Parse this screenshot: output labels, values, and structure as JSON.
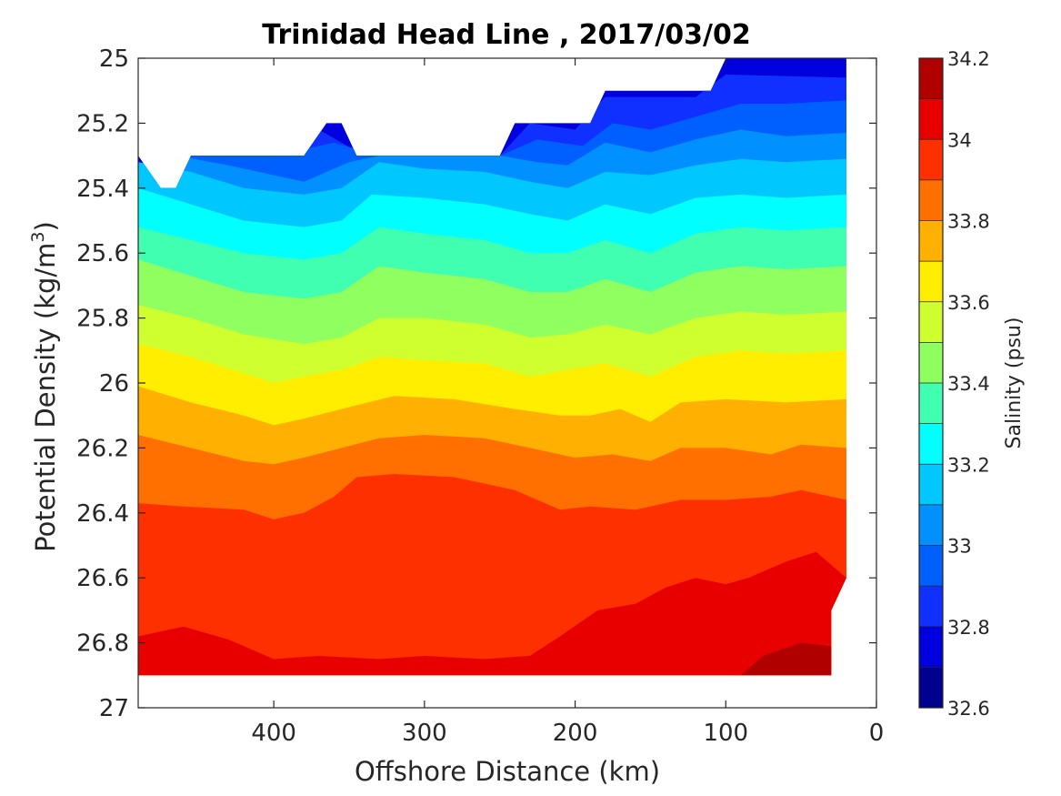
{
  "chart_data": {
    "type": "contour",
    "title": "Trinidad Head Line , 2017/03/02",
    "xlabel": "Offshore Distance (km)",
    "ylabel_main": "Potential Density (kg/m",
    "ylabel_sup": "3",
    "ylabel_close": ")",
    "colorbar_label": "Salinity (psu)",
    "xlim": [
      490,
      0
    ],
    "x_reversed": true,
    "ylim": [
      25,
      27
    ],
    "y_reversed": true,
    "x_ticks": [
      400,
      300,
      200,
      100,
      0
    ],
    "x_tick_labels": [
      "400",
      "300",
      "200",
      "100",
      "0"
    ],
    "y_ticks": [
      25,
      25.2,
      25.4,
      25.6,
      25.8,
      26,
      26.2,
      26.4,
      26.6,
      26.8,
      27
    ],
    "y_tick_labels": [
      "25",
      "25.2",
      "25.4",
      "25.6",
      "25.8",
      "26",
      "26.2",
      "26.4",
      "26.6",
      "26.8",
      "27"
    ],
    "colorbar": {
      "levels": [
        32.6,
        32.7,
        32.8,
        32.9,
        33.0,
        33.1,
        33.2,
        33.3,
        33.4,
        33.5,
        33.6,
        33.7,
        33.8,
        33.9,
        34.0,
        34.1,
        34.2
      ],
      "tick_values": [
        32.6,
        32.8,
        33.0,
        33.2,
        33.4,
        33.6,
        33.8,
        34.0,
        34.2
      ],
      "tick_labels": [
        "32.6",
        "32.8",
        "33",
        "33.2",
        "33.4",
        "33.6",
        "33.8",
        "34",
        "34.2"
      ],
      "colors": [
        "#00008f",
        "#0000df",
        "#0f30ff",
        "#0060ff",
        "#0090ff",
        "#00c8ff",
        "#00ffff",
        "#40ffb0",
        "#90ff60",
        "#d0ff30",
        "#ffee00",
        "#ffb000",
        "#ff7000",
        "#ff3000",
        "#e80000",
        "#b00000"
      ]
    },
    "data_extent": {
      "x": [
        490,
        20
      ],
      "y_min": [
        [
          490,
          25.3
        ],
        [
          475,
          25.4
        ],
        [
          465,
          25.4
        ],
        [
          455,
          25.3
        ],
        [
          380,
          25.3
        ],
        [
          365,
          25.2
        ],
        [
          355,
          25.2
        ],
        [
          345,
          25.3
        ],
        [
          250,
          25.3
        ],
        [
          240,
          25.2
        ],
        [
          190,
          25.2
        ],
        [
          180,
          25.1
        ],
        [
          110,
          25.1
        ],
        [
          100,
          25.0
        ],
        [
          20,
          25.0
        ]
      ],
      "y_max": 26.9
    },
    "isolines": [
      {
        "level": 32.8,
        "points": [
          [
            390,
            25.3
          ],
          [
            370,
            25.22
          ],
          [
            340,
            25.3
          ],
          [
            300,
            25.3
          ],
          [
            250,
            25.3
          ],
          [
            230,
            25.2
          ],
          [
            200,
            25.22
          ],
          [
            180,
            25.12
          ],
          [
            120,
            25.12
          ],
          [
            100,
            25.05
          ],
          [
            20,
            25.06
          ]
        ]
      },
      {
        "level": 32.9,
        "points": [
          [
            460,
            25.3
          ],
          [
            400,
            25.3
          ],
          [
            360,
            25.26
          ],
          [
            330,
            25.3
          ],
          [
            250,
            25.3
          ],
          [
            225,
            25.25
          ],
          [
            195,
            25.27
          ],
          [
            175,
            25.2
          ],
          [
            150,
            25.22
          ],
          [
            120,
            25.18
          ],
          [
            90,
            25.14
          ],
          [
            60,
            25.14
          ],
          [
            20,
            25.13
          ]
        ]
      },
      {
        "level": 33.0,
        "points": [
          [
            465,
            25.3
          ],
          [
            430,
            25.33
          ],
          [
            380,
            25.38
          ],
          [
            350,
            25.32
          ],
          [
            330,
            25.3
          ],
          [
            250,
            25.3
          ],
          [
            225,
            25.32
          ],
          [
            205,
            25.33
          ],
          [
            180,
            25.26
          ],
          [
            150,
            25.29
          ],
          [
            120,
            25.25
          ],
          [
            90,
            25.22
          ],
          [
            60,
            25.24
          ],
          [
            20,
            25.23
          ]
        ]
      },
      {
        "level": 33.1,
        "points": [
          [
            490,
            25.32
          ],
          [
            455,
            25.35
          ],
          [
            420,
            25.4
          ],
          [
            380,
            25.42
          ],
          [
            355,
            25.4
          ],
          [
            330,
            25.32
          ],
          [
            300,
            25.34
          ],
          [
            260,
            25.35
          ],
          [
            230,
            25.38
          ],
          [
            205,
            25.4
          ],
          [
            180,
            25.35
          ],
          [
            150,
            25.36
          ],
          [
            120,
            25.33
          ],
          [
            90,
            25.31
          ],
          [
            60,
            25.32
          ],
          [
            20,
            25.31
          ]
        ]
      },
      {
        "level": 33.2,
        "points": [
          [
            490,
            25.4
          ],
          [
            455,
            25.45
          ],
          [
            420,
            25.5
          ],
          [
            380,
            25.52
          ],
          [
            355,
            25.5
          ],
          [
            335,
            25.42
          ],
          [
            300,
            25.43
          ],
          [
            260,
            25.45
          ],
          [
            230,
            25.48
          ],
          [
            205,
            25.5
          ],
          [
            180,
            25.45
          ],
          [
            150,
            25.48
          ],
          [
            120,
            25.43
          ],
          [
            90,
            25.42
          ],
          [
            60,
            25.43
          ],
          [
            20,
            25.42
          ]
        ]
      },
      {
        "level": 33.3,
        "points": [
          [
            490,
            25.52
          ],
          [
            455,
            25.56
          ],
          [
            420,
            25.6
          ],
          [
            380,
            25.62
          ],
          [
            355,
            25.6
          ],
          [
            330,
            25.52
          ],
          [
            300,
            25.54
          ],
          [
            260,
            25.56
          ],
          [
            230,
            25.6
          ],
          [
            205,
            25.6
          ],
          [
            180,
            25.56
          ],
          [
            150,
            25.6
          ],
          [
            120,
            25.54
          ],
          [
            90,
            25.52
          ],
          [
            60,
            25.53
          ],
          [
            20,
            25.52
          ]
        ]
      },
      {
        "level": 33.4,
        "points": [
          [
            490,
            25.62
          ],
          [
            455,
            25.67
          ],
          [
            420,
            25.72
          ],
          [
            380,
            25.74
          ],
          [
            355,
            25.72
          ],
          [
            330,
            25.64
          ],
          [
            300,
            25.66
          ],
          [
            260,
            25.68
          ],
          [
            230,
            25.72
          ],
          [
            205,
            25.72
          ],
          [
            180,
            25.68
          ],
          [
            150,
            25.72
          ],
          [
            120,
            25.66
          ],
          [
            90,
            25.64
          ],
          [
            60,
            25.65
          ],
          [
            20,
            25.64
          ]
        ]
      },
      {
        "level": 33.5,
        "points": [
          [
            490,
            25.76
          ],
          [
            455,
            25.8
          ],
          [
            420,
            25.85
          ],
          [
            380,
            25.88
          ],
          [
            355,
            25.86
          ],
          [
            330,
            25.8
          ],
          [
            300,
            25.8
          ],
          [
            260,
            25.82
          ],
          [
            230,
            25.86
          ],
          [
            205,
            25.85
          ],
          [
            180,
            25.82
          ],
          [
            150,
            25.85
          ],
          [
            120,
            25.8
          ],
          [
            90,
            25.78
          ],
          [
            60,
            25.79
          ],
          [
            20,
            25.78
          ]
        ]
      },
      {
        "level": 33.6,
        "points": [
          [
            490,
            25.88
          ],
          [
            455,
            25.92
          ],
          [
            420,
            25.97
          ],
          [
            400,
            26.0
          ],
          [
            380,
            25.98
          ],
          [
            355,
            25.96
          ],
          [
            330,
            25.92
          ],
          [
            300,
            25.93
          ],
          [
            260,
            25.94
          ],
          [
            230,
            25.98
          ],
          [
            205,
            25.96
          ],
          [
            180,
            25.94
          ],
          [
            150,
            25.98
          ],
          [
            120,
            25.92
          ],
          [
            90,
            25.9
          ],
          [
            60,
            25.91
          ],
          [
            20,
            25.9
          ]
        ]
      },
      {
        "level": 33.7,
        "points": [
          [
            490,
            26.01
          ],
          [
            455,
            26.06
          ],
          [
            420,
            26.1
          ],
          [
            400,
            26.13
          ],
          [
            380,
            26.11
          ],
          [
            355,
            26.08
          ],
          [
            320,
            26.04
          ],
          [
            280,
            26.05
          ],
          [
            240,
            26.08
          ],
          [
            210,
            26.1
          ],
          [
            190,
            26.1
          ],
          [
            170,
            26.08
          ],
          [
            150,
            26.12
          ],
          [
            130,
            26.06
          ],
          [
            100,
            26.05
          ],
          [
            60,
            26.06
          ],
          [
            20,
            26.05
          ]
        ]
      },
      {
        "level": 33.8,
        "points": [
          [
            490,
            26.16
          ],
          [
            455,
            26.2
          ],
          [
            420,
            26.24
          ],
          [
            400,
            26.25
          ],
          [
            380,
            26.23
          ],
          [
            355,
            26.2
          ],
          [
            330,
            26.17
          ],
          [
            300,
            26.16
          ],
          [
            260,
            26.17
          ],
          [
            230,
            26.2
          ],
          [
            200,
            26.23
          ],
          [
            175,
            26.22
          ],
          [
            150,
            26.24
          ],
          [
            130,
            26.2
          ],
          [
            100,
            26.2
          ],
          [
            70,
            26.22
          ],
          [
            50,
            26.19
          ],
          [
            20,
            26.2
          ]
        ]
      },
      {
        "level": 33.9,
        "points": [
          [
            490,
            26.37
          ],
          [
            460,
            26.38
          ],
          [
            420,
            26.39
          ],
          [
            400,
            26.42
          ],
          [
            380,
            26.4
          ],
          [
            360,
            26.35
          ],
          [
            345,
            26.29
          ],
          [
            320,
            26.28
          ],
          [
            280,
            26.29
          ],
          [
            240,
            26.33
          ],
          [
            210,
            26.39
          ],
          [
            190,
            26.38
          ],
          [
            160,
            26.39
          ],
          [
            130,
            26.36
          ],
          [
            100,
            26.36
          ],
          [
            70,
            26.35
          ],
          [
            50,
            26.33
          ],
          [
            20,
            26.36
          ]
        ]
      },
      {
        "level": 34.0,
        "points": [
          [
            490,
            26.78
          ],
          [
            460,
            26.75
          ],
          [
            430,
            26.79
          ],
          [
            400,
            26.85
          ],
          [
            370,
            26.84
          ],
          [
            330,
            26.85
          ],
          [
            300,
            26.84
          ],
          [
            260,
            26.85
          ],
          [
            230,
            26.84
          ],
          [
            210,
            26.78
          ],
          [
            185,
            26.7
          ],
          [
            160,
            26.68
          ],
          [
            140,
            26.63
          ],
          [
            120,
            26.6
          ],
          [
            100,
            26.62
          ],
          [
            85,
            26.6
          ],
          [
            60,
            26.55
          ],
          [
            40,
            26.52
          ],
          [
            20,
            26.6
          ]
        ]
      },
      {
        "level": 34.1,
        "points": [
          [
            90,
            26.9
          ],
          [
            75,
            26.84
          ],
          [
            50,
            26.8
          ],
          [
            30,
            26.81
          ]
        ]
      }
    ]
  }
}
